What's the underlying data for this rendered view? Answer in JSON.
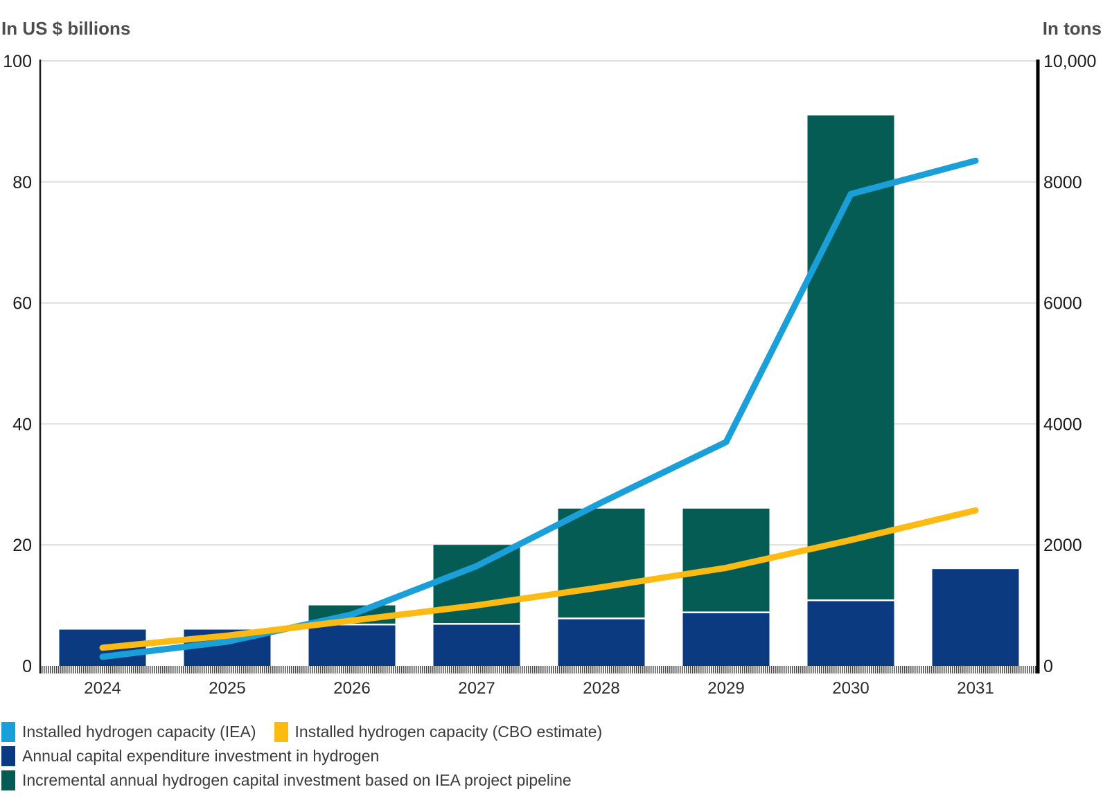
{
  "header": {
    "left_axis_title": "In US $ billions",
    "right_axis_title": "In tons"
  },
  "legend": {
    "items": [
      {
        "label": "Installed hydrogen capacity (IEA)",
        "color": "#1b9fd9",
        "type": "line"
      },
      {
        "label": "Installed hydrogen capacity (CBO estimate)",
        "color": "#fdba12",
        "type": "line"
      },
      {
        "label": "Annual capital expenditure investment in hydrogen",
        "color": "#0c3a80",
        "type": "bar"
      },
      {
        "label": "Incremental annual hydrogen capital investment based on IEA project pipeline",
        "color": "#045c55",
        "type": "bar"
      }
    ]
  },
  "chart_data": {
    "type": "combo: stacked bar (left axis) + line (right axis)",
    "categories": [
      "2024",
      "2025",
      "2026",
      "2027",
      "2028",
      "2029",
      "2030",
      "2031"
    ],
    "left_axis": {
      "title": "In US $ billions",
      "ticks": [
        0,
        20,
        40,
        60,
        80,
        100
      ],
      "range": [
        0,
        100
      ]
    },
    "right_axis": {
      "title": "In tons",
      "ticks": [
        0,
        2000,
        4000,
        6000,
        8000,
        10000
      ],
      "tick_labels": [
        "0",
        "2000",
        "4000",
        "6000",
        "8000",
        "10,000"
      ],
      "range": [
        0,
        10000
      ]
    },
    "series": [
      {
        "name": "Annual capital expenditure investment in hydrogen",
        "type": "bar",
        "stack": "capex",
        "axis": "left",
        "color": "#0c3a80",
        "values": [
          6,
          6,
          6.7,
          6.8,
          7.7,
          8.7,
          10.7,
          16
        ]
      },
      {
        "name": "Incremental annual hydrogen capital investment based on IEA project pipeline",
        "type": "bar",
        "stack": "capex",
        "axis": "left",
        "color": "#045c55",
        "values": [
          0,
          0,
          3.3,
          13.2,
          18.3,
          17.3,
          80.3,
          0
        ],
        "stack_totals": [
          6,
          6,
          10,
          20,
          26,
          26,
          91,
          16
        ]
      },
      {
        "name": "Installed hydrogen capacity (IEA)",
        "type": "line",
        "axis": "right",
        "color": "#1b9fd9",
        "values": [
          150,
          400,
          850,
          1650,
          2700,
          3700,
          7800,
          8350
        ]
      },
      {
        "name": "Installed hydrogen capacity (CBO estimate)",
        "type": "line",
        "axis": "right",
        "color": "#fdba12",
        "values": [
          300,
          500,
          750,
          1000,
          1300,
          1620,
          2080,
          2570
        ]
      }
    ],
    "grid": true,
    "legend_position": "bottom"
  }
}
